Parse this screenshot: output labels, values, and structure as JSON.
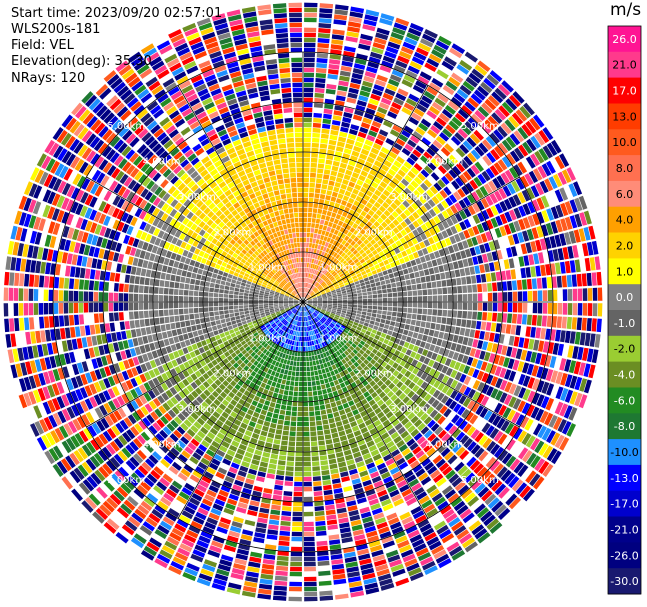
{
  "header": {
    "start_time": "Start time: 2023/09/20 02:57:01",
    "instrument": "WLS200s-181",
    "field": "Field: VEL",
    "elevation": "Elevation(deg): 35.30",
    "nrays": "NRays: 120"
  },
  "colorbar": {
    "unit": "m/s",
    "ticks": [
      "26.0",
      "21.0",
      "17.0",
      "13.0",
      "10.0",
      "8.0",
      "6.0",
      "4.0",
      "2.0",
      "1.0",
      "0.0",
      "-1.0",
      "-2.0",
      "-4.0",
      "-6.0",
      "-8.0",
      "-10.0",
      "-13.0",
      "-17.0",
      "-21.0",
      "-26.0",
      "-30.0"
    ],
    "colors": [
      "#ff1493",
      "#ff3a8c",
      "#ff0000",
      "#ff3c00",
      "#ff5a1e",
      "#ff7050",
      "#ff8c78",
      "#ffa000",
      "#ffd200",
      "#ffff00",
      "#808080",
      "#646464",
      "#9acd32",
      "#6b8e23",
      "#228b22",
      "#1e7832",
      "#1e90ff",
      "#0000ff",
      "#0000cd",
      "#00008b",
      "#000080",
      "#191970"
    ]
  },
  "chart_data": {
    "type": "ppi-scan",
    "field": "VEL",
    "units": "m/s",
    "nrays": 120,
    "max_range_km": 6.0,
    "ring_labels": [
      "1.00km",
      "2.00km",
      "3.00km",
      "4.00km",
      "5.00km"
    ],
    "colorbar_min": -30.0,
    "colorbar_max": 26.0,
    "pattern": "Near-range field is yellow/orange (positive velocity) to the north and green (negative velocity) to the south with a blue core near the centre; beyond about 3.5 km values are noisy, spanning the full colour scale."
  }
}
